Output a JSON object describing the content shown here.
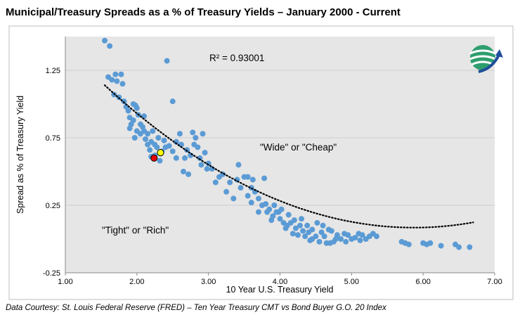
{
  "title": "Municipal/Treasury Spreads as a % of Treasury Yields – January 2000 - Current",
  "footnote": "Data Courtesy: St. Louis Federal Reserve (FRED) – Ten Year Treasury CMT vs Bond Buyer G.O. 20 Index",
  "colors": {
    "point": "#5b9bd5",
    "highlight_red": "#e60000",
    "highlight_yellow": "#ffff00",
    "plot_bg": "#e6e6e6",
    "trend": "#000000"
  },
  "chart_data": {
    "type": "scatter",
    "xlabel": "10 Year U.S. Treasury Yield",
    "ylabel": "Spread as % of Treasury Yield",
    "xlim": [
      1.0,
      7.0
    ],
    "ylim": [
      -0.25,
      1.5
    ],
    "x_ticks": [
      "1.00",
      "2.00",
      "3.00",
      "4.00",
      "5.00",
      "6.00",
      "7.00"
    ],
    "y_ticks": [
      "-0.25",
      "0.25",
      "0.75",
      "1.25"
    ],
    "x_tick_values": [
      1,
      2,
      3,
      4,
      5,
      6,
      7
    ],
    "y_tick_values": [
      -0.25,
      0.25,
      0.75,
      1.25
    ],
    "r_squared_label": "R² = 0.93001",
    "annotations": [
      "\"Wide\" or \"Cheap\"",
      "\"Tight\" or \"Rich\""
    ],
    "trendline": "polynomial dotted",
    "trend_coeffs": [
      0.0565,
      -0.6634,
      2.032
    ],
    "trend_x_range": [
      1.55,
      6.7
    ],
    "highlights": [
      {
        "name": "red",
        "x": 2.24,
        "y": 0.6
      },
      {
        "name": "yellow",
        "x": 2.33,
        "y": 0.64
      }
    ],
    "points": [
      [
        1.55,
        1.47
      ],
      [
        1.62,
        1.43
      ],
      [
        1.6,
        1.2
      ],
      [
        1.65,
        1.18
      ],
      [
        1.68,
        1.07
      ],
      [
        1.7,
        1.22
      ],
      [
        1.72,
        1.17
      ],
      [
        1.75,
        1.05
      ],
      [
        1.78,
        1.22
      ],
      [
        1.8,
        1.15
      ],
      [
        1.82,
        1.02
      ],
      [
        1.85,
        0.98
      ],
      [
        1.88,
        0.95
      ],
      [
        1.9,
        0.9
      ],
      [
        1.9,
        0.82
      ],
      [
        1.92,
        0.85
      ],
      [
        1.95,
        1.0
      ],
      [
        1.95,
        0.88
      ],
      [
        1.97,
        0.75
      ],
      [
        1.98,
        0.99
      ],
      [
        2.0,
        0.97
      ],
      [
        2.0,
        0.8
      ],
      [
        2.02,
        0.92
      ],
      [
        2.05,
        0.85
      ],
      [
        2.05,
        0.78
      ],
      [
        2.08,
        0.83
      ],
      [
        2.1,
        0.8
      ],
      [
        2.1,
        0.91
      ],
      [
        2.12,
        0.74
      ],
      [
        2.15,
        0.78
      ],
      [
        2.15,
        0.7
      ],
      [
        2.18,
        0.66
      ],
      [
        2.2,
        0.72
      ],
      [
        2.2,
        0.61
      ],
      [
        2.22,
        0.8
      ],
      [
        2.25,
        0.7
      ],
      [
        2.25,
        0.62
      ],
      [
        2.28,
        0.68
      ],
      [
        2.3,
        0.75
      ],
      [
        2.32,
        0.58
      ],
      [
        2.35,
        0.65
      ],
      [
        2.38,
        0.73
      ],
      [
        2.4,
        0.68
      ],
      [
        2.42,
        1.32
      ],
      [
        2.45,
        0.69
      ],
      [
        2.5,
        1.02
      ],
      [
        2.5,
        0.65
      ],
      [
        2.55,
        0.6
      ],
      [
        2.55,
        0.72
      ],
      [
        2.6,
        0.78
      ],
      [
        2.62,
        0.7
      ],
      [
        2.65,
        0.5
      ],
      [
        2.67,
        0.6
      ],
      [
        2.7,
        0.66
      ],
      [
        2.72,
        0.48
      ],
      [
        2.75,
        0.62
      ],
      [
        2.78,
        0.79
      ],
      [
        2.8,
        0.7
      ],
      [
        2.82,
        0.75
      ],
      [
        2.85,
        0.68
      ],
      [
        2.88,
        0.6
      ],
      [
        2.9,
        0.55
      ],
      [
        2.92,
        0.78
      ],
      [
        2.95,
        0.64
      ],
      [
        2.98,
        0.52
      ],
      [
        3.0,
        0.56
      ],
      [
        3.05,
        0.52
      ],
      [
        3.1,
        0.42
      ],
      [
        3.15,
        0.46
      ],
      [
        3.2,
        0.48
      ],
      [
        3.25,
        0.35
      ],
      [
        3.3,
        0.42
      ],
      [
        3.35,
        0.3
      ],
      [
        3.4,
        0.44
      ],
      [
        3.42,
        0.55
      ],
      [
        3.45,
        0.38
      ],
      [
        3.5,
        0.46
      ],
      [
        3.55,
        0.46
      ],
      [
        3.55,
        0.32
      ],
      [
        3.6,
        0.27
      ],
      [
        3.6,
        0.38
      ],
      [
        3.62,
        0.44
      ],
      [
        3.65,
        0.35
      ],
      [
        3.7,
        0.3
      ],
      [
        3.7,
        0.2
      ],
      [
        3.75,
        0.25
      ],
      [
        3.78,
        0.45
      ],
      [
        3.8,
        0.26
      ],
      [
        3.82,
        0.2
      ],
      [
        3.85,
        0.22
      ],
      [
        3.88,
        0.14
      ],
      [
        3.9,
        0.17
      ],
      [
        3.92,
        0.25
      ],
      [
        3.95,
        0.2
      ],
      [
        3.98,
        0.2
      ],
      [
        4.0,
        0.15
      ],
      [
        4.02,
        0.22
      ],
      [
        4.05,
        0.12
      ],
      [
        4.08,
        0.08
      ],
      [
        4.1,
        0.1
      ],
      [
        4.12,
        0.18
      ],
      [
        4.15,
        0.12
      ],
      [
        4.18,
        0.04
      ],
      [
        4.2,
        0.14
      ],
      [
        4.22,
        0.08
      ],
      [
        4.25,
        0.03
      ],
      [
        4.28,
        0.1
      ],
      [
        4.3,
        0.15
      ],
      [
        4.32,
        0.06
      ],
      [
        4.35,
        0.02
      ],
      [
        4.38,
        0.1
      ],
      [
        4.4,
        0.05
      ],
      [
        4.42,
        -0.01
      ],
      [
        4.45,
        0.0
      ],
      [
        4.45,
        0.07
      ],
      [
        4.5,
        0.02
      ],
      [
        4.52,
        0.12
      ],
      [
        4.55,
        -0.02
      ],
      [
        4.58,
        0.05
      ],
      [
        4.6,
        0.1
      ],
      [
        4.62,
        0.02
      ],
      [
        4.65,
        -0.03
      ],
      [
        4.68,
        0.07
      ],
      [
        4.7,
        -0.03
      ],
      [
        4.72,
        0.06
      ],
      [
        4.75,
        -0.02
      ],
      [
        4.78,
        0.0
      ],
      [
        4.8,
        0.03
      ],
      [
        4.85,
        0.0
      ],
      [
        4.9,
        0.04
      ],
      [
        4.92,
        -0.02
      ],
      [
        4.95,
        0.03
      ],
      [
        5.0,
        0.0
      ],
      [
        5.05,
        0.01
      ],
      [
        5.1,
        0.04
      ],
      [
        5.12,
        -0.01
      ],
      [
        5.15,
        0.03
      ],
      [
        5.2,
        0.0
      ],
      [
        5.25,
        0.02
      ],
      [
        5.3,
        0.04
      ],
      [
        5.35,
        0.02
      ],
      [
        5.7,
        -0.02
      ],
      [
        5.75,
        -0.03
      ],
      [
        5.8,
        -0.04
      ],
      [
        6.0,
        -0.03
      ],
      [
        6.05,
        -0.04
      ],
      [
        6.1,
        -0.03
      ],
      [
        6.25,
        -0.05
      ],
      [
        6.45,
        -0.04
      ],
      [
        6.5,
        -0.06
      ],
      [
        6.65,
        -0.06
      ]
    ]
  }
}
